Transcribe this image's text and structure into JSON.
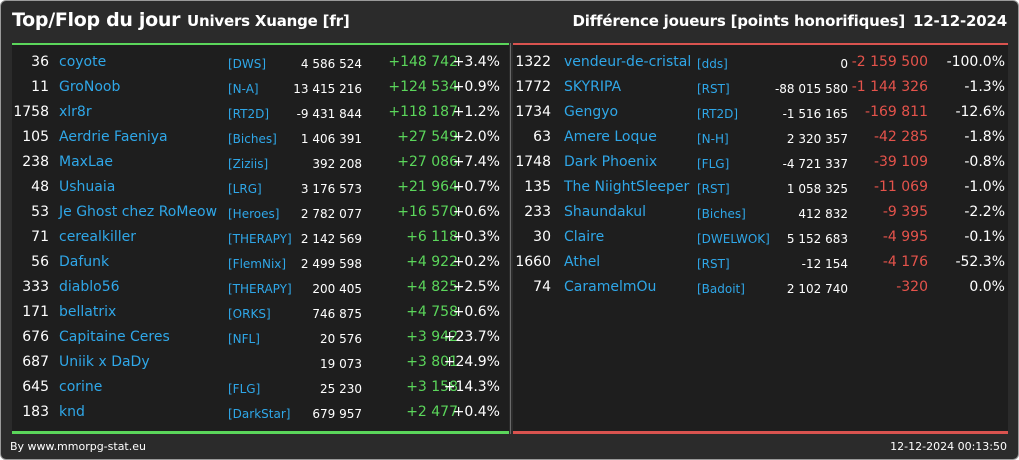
{
  "header": {
    "title": "Top/Flop du jour",
    "universe": "Univers Xuange [fr]",
    "metric": "Différence joueurs [points honorifiques]",
    "date": "12-12-2024"
  },
  "colors": {
    "background": "#2b2b2b",
    "panel": "#1e1e1e",
    "top_accent": "#5bd65b",
    "flop_accent": "#d9534f",
    "link": "#2fa7e8",
    "negative_text": "#e5534b"
  },
  "top": [
    {
      "rank": "36",
      "name": "coyote",
      "alliance": "[DWS]",
      "points": "4 586 524",
      "diff": "+148 742",
      "pct": "+3.4%"
    },
    {
      "rank": "11",
      "name": "GroNoob",
      "alliance": "[N-A]",
      "points": "13 415 216",
      "diff": "+124 534",
      "pct": "+0.9%"
    },
    {
      "rank": "1758",
      "name": "xlr8r",
      "alliance": "[RT2D]",
      "points": "-9 431 844",
      "diff": "+118 187",
      "pct": "+1.2%"
    },
    {
      "rank": "105",
      "name": "Aerdrie Faeniya",
      "alliance": "[Biches]",
      "points": "1 406 391",
      "diff": "+27 549",
      "pct": "+2.0%"
    },
    {
      "rank": "238",
      "name": "MaxLae",
      "alliance": "[Ziziis]",
      "points": "392 208",
      "diff": "+27 086",
      "pct": "+7.4%"
    },
    {
      "rank": "48",
      "name": "Ushuaia",
      "alliance": "[LRG]",
      "points": "3 176 573",
      "diff": "+21 964",
      "pct": "+0.7%"
    },
    {
      "rank": "53",
      "name": "Je Ghost chez RoMeow",
      "alliance": "[Heroes]",
      "points": "2 782 077",
      "diff": "+16 570",
      "pct": "+0.6%"
    },
    {
      "rank": "71",
      "name": "cerealkiller",
      "alliance": "[THERAPY]",
      "points": "2 142 569",
      "diff": "+6 118",
      "pct": "+0.3%"
    },
    {
      "rank": "56",
      "name": "Dafunk",
      "alliance": "[FlemNix]",
      "points": "2 499 598",
      "diff": "+4 922",
      "pct": "+0.2%"
    },
    {
      "rank": "333",
      "name": "diablo56",
      "alliance": "[THERAPY]",
      "points": "200 405",
      "diff": "+4 825",
      "pct": "+2.5%"
    },
    {
      "rank": "171",
      "name": "bellatrix",
      "alliance": "[ORKS]",
      "points": "746 875",
      "diff": "+4 758",
      "pct": "+0.6%"
    },
    {
      "rank": "676",
      "name": "Capitaine Ceres",
      "alliance": "[NFL]",
      "points": "20 576",
      "diff": "+3 942",
      "pct": "+23.7%"
    },
    {
      "rank": "687",
      "name": "Uniik x DaDy",
      "alliance": "",
      "points": "19 073",
      "diff": "+3 801",
      "pct": "+24.9%"
    },
    {
      "rank": "645",
      "name": "corine",
      "alliance": "[FLG]",
      "points": "25 230",
      "diff": "+3 158",
      "pct": "+14.3%"
    },
    {
      "rank": "183",
      "name": "knd",
      "alliance": "[DarkStar]",
      "points": "679 957",
      "diff": "+2 477",
      "pct": "+0.4%"
    }
  ],
  "flop": [
    {
      "rank": "1322",
      "name": "vendeur-de-cristal",
      "alliance": "[dds]",
      "points": "0",
      "diff": "-2 159 500",
      "pct": "-100.0%"
    },
    {
      "rank": "1772",
      "name": "SKYRIPA",
      "alliance": "[RST]",
      "points": "-88 015 580",
      "diff": "-1 144 326",
      "pct": "-1.3%"
    },
    {
      "rank": "1734",
      "name": "Gengyo",
      "alliance": "[RT2D]",
      "points": "-1 516 165",
      "diff": "-169 811",
      "pct": "-12.6%"
    },
    {
      "rank": "63",
      "name": "Amere Loque",
      "alliance": "[N-H]",
      "points": "2 320 357",
      "diff": "-42 285",
      "pct": "-1.8%"
    },
    {
      "rank": "1748",
      "name": "Dark Phoenix",
      "alliance": "[FLG]",
      "points": "-4 721 337",
      "diff": "-39 109",
      "pct": "-0.8%"
    },
    {
      "rank": "135",
      "name": "The NiightSleeper",
      "alliance": "[RST]",
      "points": "1 058 325",
      "diff": "-11 069",
      "pct": "-1.0%"
    },
    {
      "rank": "233",
      "name": "Shaundakul",
      "alliance": "[Biches]",
      "points": "412 832",
      "diff": "-9 395",
      "pct": "-2.2%"
    },
    {
      "rank": "30",
      "name": "Claire",
      "alliance": "[DWELWOK]",
      "points": "5 152 683",
      "diff": "-4 995",
      "pct": "-0.1%"
    },
    {
      "rank": "1660",
      "name": "Athel",
      "alliance": "[RST]",
      "points": "-12 154",
      "diff": "-4 176",
      "pct": "-52.3%"
    },
    {
      "rank": "74",
      "name": "CaramelmOu",
      "alliance": "[Badoit]",
      "points": "2 102 740",
      "diff": "-320",
      "pct": "0.0%"
    }
  ],
  "footer": {
    "source": "By www.mmorpg-stat.eu",
    "timestamp": "12-12-2024 00:13:50"
  }
}
